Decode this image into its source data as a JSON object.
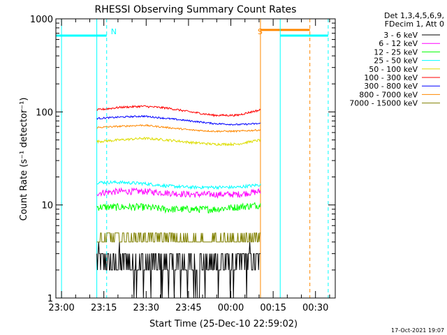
{
  "chart_data": {
    "type": "line",
    "title": "RHESSI Observing Summary Count Rates",
    "xlabel": "Start Time (25-Dec-10 22:59:02)",
    "ylabel": "Count Rate (s⁻¹ detector⁻¹)",
    "yscale": "log",
    "ylim": [
      1,
      1000
    ],
    "xlim_minutes": [
      -2,
      97
    ],
    "x_ticks": [
      {
        "label": "23:00",
        "min": 0
      },
      {
        "label": "23:15",
        "min": 15
      },
      {
        "label": "23:30",
        "min": 30
      },
      {
        "label": "23:45",
        "min": 45
      },
      {
        "label": "00:00",
        "min": 60
      },
      {
        "label": "00:15",
        "min": 75
      },
      {
        "label": "00:30",
        "min": 90
      }
    ],
    "y_ticks": [
      {
        "label": "1",
        "value": 1
      },
      {
        "label": "10",
        "value": 10
      },
      {
        "label": "100",
        "value": 100
      },
      {
        "label": "1000",
        "value": 1000
      }
    ],
    "legend_header": [
      "Det 1,3,4,5,6,9,",
      "FDecim 1, Att 0"
    ],
    "legend_position": "right",
    "series": [
      {
        "name": "3 - 6 keV",
        "color": "#000000",
        "start": 12.5,
        "end": 70.5,
        "values": [
          2.6,
          2.5,
          2.3,
          2.2,
          2.2,
          2.3,
          2.4,
          2.6
        ],
        "noise": 0.45,
        "minv": 1.0,
        "maxv": 4.0
      },
      {
        "name": "6 - 12 keV",
        "color": "#ff00ff",
        "start": 12.5,
        "end": 70.5,
        "values": [
          13.5,
          14,
          14,
          13.5,
          13,
          13,
          13,
          14
        ],
        "noise": 0.08
      },
      {
        "name": "12 - 25 keV",
        "color": "#00ff00",
        "start": 12.5,
        "end": 70.5,
        "values": [
          9.5,
          9.5,
          9.5,
          9,
          9,
          9,
          9.5,
          10
        ],
        "noise": 0.09
      },
      {
        "name": "25 - 50 keV",
        "color": "#00ffff",
        "start": 12.5,
        "end": 70.5,
        "values": [
          17.5,
          17.5,
          17,
          16,
          15.5,
          15.5,
          15.5,
          16.5
        ],
        "noise": 0.04
      },
      {
        "name": "50 - 100 keV",
        "color": "#dddd00",
        "start": 12.5,
        "end": 70.5,
        "values": [
          48,
          50,
          52,
          50,
          47,
          45,
          45,
          50
        ],
        "noise": 0.03
      },
      {
        "name": "100 - 300 keV",
        "color": "#ff0000",
        "start": 12.5,
        "end": 70.5,
        "values": [
          105,
          112,
          115,
          110,
          100,
          92,
          92,
          105
        ],
        "noise": 0.025
      },
      {
        "name": "300 - 800 keV",
        "color": "#0000ff",
        "start": 12.5,
        "end": 70.5,
        "values": [
          85,
          88,
          90,
          85,
          80,
          75,
          73,
          75
        ],
        "noise": 0.02
      },
      {
        "name": "800 - 7000 keV",
        "color": "#ff8800",
        "start": 12.5,
        "end": 70.5,
        "values": [
          68,
          70,
          72,
          68,
          64,
          62,
          62,
          64
        ],
        "noise": 0.02
      },
      {
        "name": "7000 - 15000 keV",
        "color": "#808000",
        "start": 12.5,
        "end": 70.5,
        "values": [
          4.2,
          4.4,
          4.5,
          4.4,
          4.2,
          4.2,
          4.2,
          4.5
        ],
        "noise": 0.12,
        "minv": 2.0,
        "maxv": 6.0
      }
    ],
    "annotations": [
      {
        "label": "N",
        "color": "#00ffff",
        "min": 16
      },
      {
        "label": "S",
        "color": "#ff8800",
        "min": 68
      }
    ],
    "vlines": [
      {
        "color": "#00ffff",
        "min": 0,
        "style": "solid"
      },
      {
        "color": "#00ffff",
        "min": 12.5,
        "style": "solid"
      },
      {
        "color": "#00ffff",
        "min": 16,
        "style": "dashed"
      },
      {
        "color": "#ff8800",
        "min": 70.5,
        "style": "solid"
      },
      {
        "color": "#00ffff",
        "min": 77.5,
        "style": "solid"
      },
      {
        "color": "#ff8800",
        "min": 88,
        "style": "dashed"
      },
      {
        "color": "#00ffff",
        "min": 94.5,
        "style": "dashed"
      }
    ],
    "bars": [
      {
        "color": "#00ffff",
        "start": -2,
        "end": 16,
        "value": 660
      },
      {
        "color": "#ff8800",
        "start": 70.5,
        "end": 88,
        "value": 760
      },
      {
        "color": "#00ffff",
        "start": 77.5,
        "end": 94.5,
        "value": 660
      }
    ]
  },
  "footer_date": "17-Oct-2021 19:07"
}
